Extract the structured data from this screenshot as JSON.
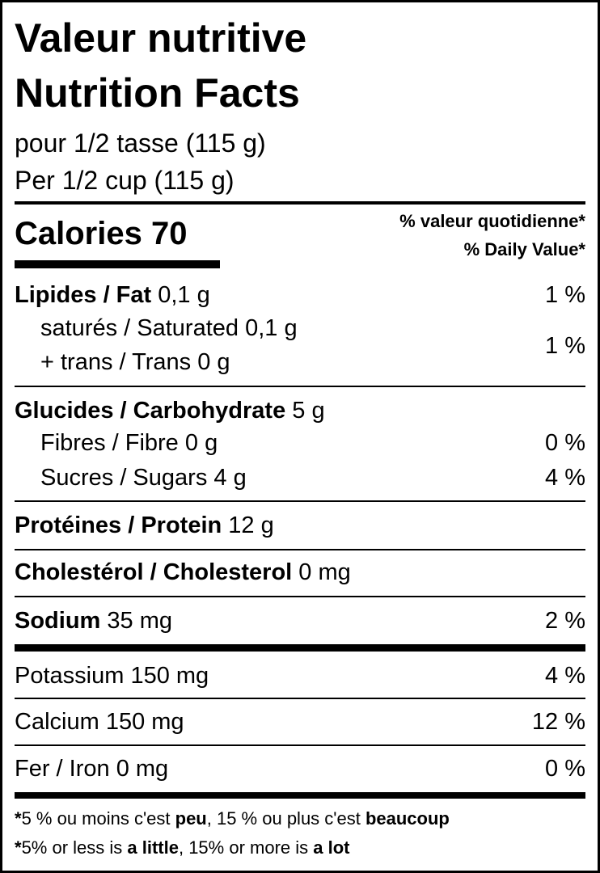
{
  "title_fr": "Valeur nutritive",
  "title_en": "Nutrition Facts",
  "serving_fr": "pour 1/2 tasse (115 g)",
  "serving_en": "Per 1/2 cup (115 g)",
  "calories": {
    "label": "Calories",
    "value": "70"
  },
  "dv_header_fr": "% valeur quotidienne*",
  "dv_header_en": "% Daily Value*",
  "nutrients": {
    "fat": {
      "label": "Lipides / Fat",
      "amount": "0,1 g",
      "dv": "1 %"
    },
    "saturated": {
      "label": "saturés / Saturated",
      "amount": "0,1 g"
    },
    "trans": {
      "label": "+ trans / Trans",
      "amount": "0 g",
      "dv": "1 %"
    },
    "carb": {
      "label": "Glucides / Carbohydrate",
      "amount": "5 g"
    },
    "fibre": {
      "label": "Fibres / Fibre",
      "amount": "0 g",
      "dv": "0 %"
    },
    "sugars": {
      "label": "Sucres / Sugars",
      "amount": "4 g",
      "dv": "4 %"
    },
    "protein": {
      "label": "Protéines / Protein",
      "amount": "12 g"
    },
    "cholesterol": {
      "label": "Cholestérol / Cholesterol",
      "amount": "0 mg"
    },
    "sodium": {
      "label": "Sodium",
      "amount": "35 mg",
      "dv": "2 %"
    },
    "potassium": {
      "label": "Potassium",
      "amount": "150 mg",
      "dv": "4 %"
    },
    "calcium": {
      "label": "Calcium",
      "amount": "150 mg",
      "dv": "12 %"
    },
    "iron": {
      "label": "Fer / Iron",
      "amount": "0 mg",
      "dv": "0 %"
    }
  },
  "footnote_fr": {
    "star": "*",
    "a": "5 % ou moins c'est ",
    "b": "peu",
    "c": ", 15 % ou plus c'est ",
    "d": "beaucoup"
  },
  "footnote_en": {
    "star": "*",
    "a": "5% or less is ",
    "b": "a little",
    "c": ", 15% or more is ",
    "d": "a lot"
  }
}
